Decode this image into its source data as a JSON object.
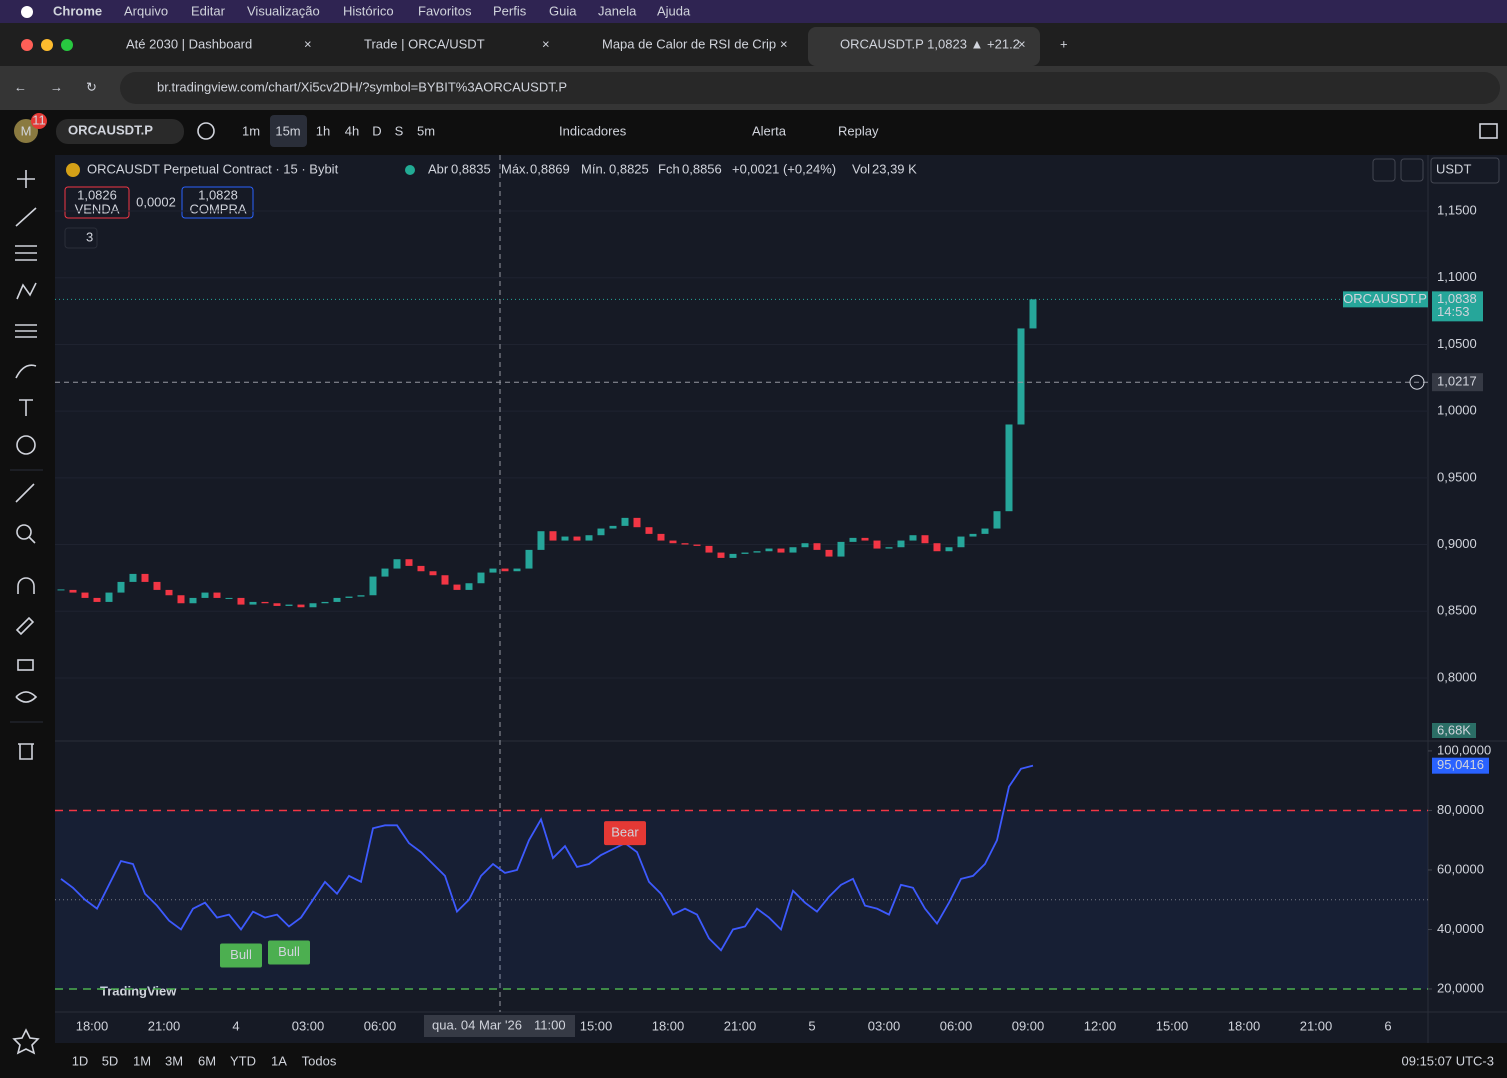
{
  "menu_bar": {
    "app": "Chrome",
    "items": [
      "Arquivo",
      "Editar",
      "Visualização",
      "Histórico",
      "Favoritos",
      "Perfis",
      "Guia",
      "Janela",
      "Ajuda"
    ]
  },
  "tabs": [
    "Até 2030 | Dashboard",
    "Trade | ORCA/USDT",
    "Mapa de Calor de RSI de Crip",
    "ORCAUSDT.P 1,0823 ▲ +21.2"
  ],
  "address": "br.tradingview.com/chart/Xi5cv2DH/?symbol=BYBIT%3AORCAUSDT.P",
  "toolbar": {
    "badge": "11",
    "avatar": "M",
    "symbol": "ORCAUSDT.P",
    "intervals": [
      "1m",
      "15m",
      "1h",
      "4h",
      "D",
      "S",
      "5m"
    ],
    "indicators": "Indicadores",
    "alert": "Alerta",
    "replay": "Replay"
  },
  "legend": {
    "title": "ORCAUSDT Perpetual Contract · 15 · Bybit",
    "open_label": "Abr",
    "open": "0,8835",
    "high_label": "Máx.",
    "high": "0,8869",
    "low_label": "Mín.",
    "low": "0,8825",
    "close_label": "Fch",
    "close": "0,8856",
    "change": "+0,0021 (+0,24%)",
    "vol_label": "Vol",
    "vol": "23,39 K"
  },
  "order": {
    "sell_price": "1,0826",
    "sell_label": "VENDA",
    "spread": "0,0002",
    "buy_price": "1,0828",
    "buy_label": "COMPRA"
  },
  "collapsed_count": "3",
  "currency": "USDT",
  "watermark": "TradingView",
  "chart_data": [
    {
      "type": "candlestick",
      "closes": [
        0.866,
        0.864,
        0.86,
        0.857,
        0.864,
        0.872,
        0.878,
        0.872,
        0.866,
        0.862,
        0.856,
        0.86,
        0.864,
        0.86,
        0.86,
        0.855,
        0.857,
        0.856,
        0.854,
        0.855,
        0.853,
        0.856,
        0.857,
        0.86,
        0.861,
        0.862,
        0.876,
        0.882,
        0.889,
        0.884,
        0.88,
        0.877,
        0.87,
        0.866,
        0.871,
        0.879,
        0.882,
        0.88,
        0.882,
        0.896,
        0.91,
        0.903,
        0.906,
        0.903,
        0.907,
        0.912,
        0.914,
        0.92,
        0.913,
        0.908,
        0.903,
        0.901,
        0.9,
        0.899,
        0.894,
        0.89,
        0.893,
        0.894,
        0.895,
        0.897,
        0.894,
        0.898,
        0.901,
        0.896,
        0.891,
        0.902,
        0.905,
        0.903,
        0.897,
        0.898,
        0.903,
        0.907,
        0.901,
        0.895,
        0.898,
        0.906,
        0.908,
        0.912,
        0.925,
        0.99,
        1.062,
        1.0838
      ],
      "up_color": "#26a69a",
      "down_color": "#f23645",
      "ylim": [
        0.7535,
        1.192
      ],
      "yticks": [
        {
          "value": 1.15,
          "label": "1,1500"
        },
        {
          "value": 1.1,
          "label": "1,1000"
        },
        {
          "value": 1.05,
          "label": "1,0500"
        },
        {
          "value": 1.0,
          "label": "1,0000"
        },
        {
          "value": 0.95,
          "label": "0,9500"
        },
        {
          "value": 0.9,
          "label": "0,9000"
        },
        {
          "value": 0.85,
          "label": "0,8500"
        },
        {
          "value": 0.8,
          "label": "0,8000"
        }
      ],
      "grid": true,
      "symbol_tag": "ORCAUSDT.P",
      "last_price": {
        "value": 1.0838,
        "label": "1,0838"
      },
      "countdown": "14:53",
      "crosshair": {
        "value": 1.0217,
        "label": "1,0217"
      },
      "volume_tag": "6,68K"
    },
    {
      "type": "line",
      "values": [
        57,
        54,
        50,
        47,
        55,
        63,
        62,
        52,
        48,
        43,
        40,
        47,
        49,
        44,
        45,
        40,
        46,
        44,
        45,
        41,
        44,
        50,
        56,
        52,
        58,
        56,
        74,
        75,
        75,
        69,
        66,
        62,
        58,
        46,
        50,
        58,
        62,
        59,
        60,
        70,
        77,
        64,
        68,
        61,
        62,
        65,
        67,
        69,
        66,
        56,
        52,
        45,
        47,
        45,
        37,
        33,
        40,
        41,
        47,
        44,
        40,
        53,
        49,
        46,
        51,
        55,
        57,
        48,
        47,
        45,
        55,
        54,
        47,
        42,
        49,
        57,
        58,
        62,
        70,
        88,
        94,
        95.0416
      ],
      "color": "#3d5afe",
      "ylim": [
        12.6,
        103
      ],
      "yticks": [
        {
          "value": 100,
          "label": "100,0000"
        },
        {
          "value": 80,
          "label": "80,0000"
        },
        {
          "value": 60,
          "label": "60,0000"
        },
        {
          "value": 40,
          "label": "40,0000"
        },
        {
          "value": 20,
          "label": "20,0000"
        }
      ],
      "upper_band": 80,
      "middle_band": 50,
      "lower_band": 20,
      "last_value": {
        "value": 95.0416,
        "label": "95,0416"
      },
      "signals": [
        {
          "label": "Bull",
          "at": 15
        },
        {
          "label": "Bull",
          "at": 19
        },
        {
          "label": "Bear",
          "at": 47
        }
      ]
    }
  ],
  "time_axis": {
    "labels": [
      "18:00",
      "21:00",
      "4",
      "03:00",
      "06:00",
      null,
      null,
      "15:00",
      "18:00",
      "21:00",
      "5",
      "03:00",
      "06:00",
      "09:00",
      "12:00",
      "15:00",
      "18:00",
      "21:00",
      "6"
    ],
    "crosshair_date": "qua. 04 Mar '26",
    "crosshair_time": "11:00"
  },
  "bottom_bar": {
    "ranges": [
      "1D",
      "5D",
      "1M",
      "3M",
      "6M",
      "YTD",
      "1A",
      "Todos"
    ],
    "clock": "09:15:07 UTC-3"
  }
}
